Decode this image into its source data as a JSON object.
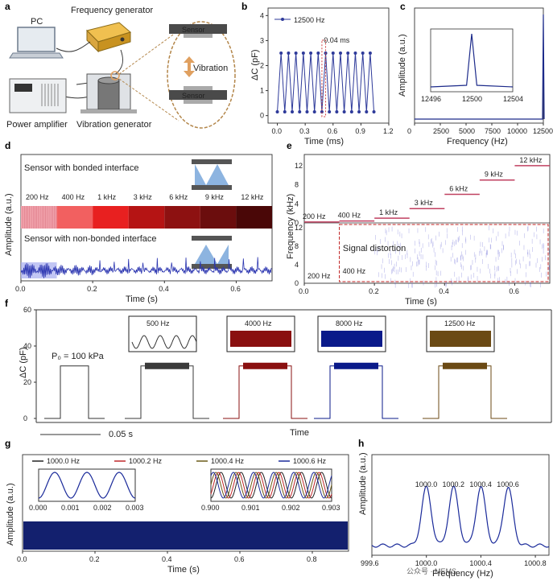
{
  "panel_letters": [
    "a",
    "b",
    "c",
    "d",
    "e",
    "f",
    "g",
    "h"
  ],
  "schematic": {
    "labels": [
      "PC",
      "Frequency generator",
      "Power amplifier",
      "Vibration generator",
      "Sensor",
      "Sensor",
      "Vibration"
    ],
    "colors": {
      "accent": "#e0a060",
      "dash": "#b3864a",
      "sensor": "#555555",
      "laptop": "#6b7a8c",
      "gen": "#d9a640"
    }
  },
  "chart_data": [
    {
      "panel": "b",
      "type": "line",
      "xlabel": "Time (ms)",
      "ylabel": "ΔC (pF)",
      "xlim": [
        -0.1,
        1.2
      ],
      "ylim": [
        -0.3,
        4.3
      ],
      "xticks": [
        0.0,
        0.3,
        0.6,
        0.9,
        1.2
      ],
      "yticks": [
        0,
        1,
        2,
        3,
        4
      ],
      "series": [
        {
          "name": "12500 Hz",
          "color": "#2e3a9a",
          "frequency_hz": 12500,
          "min": 0.15,
          "max": 2.5
        }
      ],
      "annotation": "0.04 ms"
    },
    {
      "panel": "c",
      "type": "line",
      "xlabel": "Frequency (Hz)",
      "ylabel": "Amplitude (a.u.)",
      "xlim": [
        0,
        12500
      ],
      "xticks": [
        0,
        2500,
        5000,
        7500,
        10000,
        12500
      ],
      "peak": 12500,
      "color": "#1c2a8a",
      "inset": {
        "xlim": [
          12496,
          12504
        ],
        "xticks": [
          12496,
          12500,
          12504
        ],
        "peak": 12500
      }
    },
    {
      "panel": "d",
      "type": "line",
      "xlabel": "Time (s)",
      "ylabel": "Amplitude (a.u.)",
      "xlim": [
        0,
        0.7
      ],
      "xticks": [
        0.0,
        0.2,
        0.4,
        0.6
      ],
      "title_top": "Sensor with bonded interface",
      "title_bottom": "Sensor with non-bonded interface",
      "segments": [
        "200 Hz",
        "400 Hz",
        "1 kHz",
        "3 kHz",
        "6 kHz",
        "9 kHz",
        "12 kHz"
      ],
      "segment_colors": [
        "#f3a7b0",
        "#f26060",
        "#e82020",
        "#b51414",
        "#8d1111",
        "#6b0d0d",
        "#4a0707"
      ],
      "bottom_color": "#2b35b0"
    },
    {
      "panel": "e",
      "type": "heatmap",
      "xlabel": "Time (s)",
      "ylabel": "Frequency (kHz)",
      "xlim": [
        0,
        0.7
      ],
      "xticks": [
        0.0,
        0.2,
        0.4,
        0.6
      ],
      "ylim": [
        0,
        13
      ],
      "yticks": [
        0,
        4,
        8,
        12
      ],
      "steps": [
        {
          "label": "200 Hz",
          "t0": 0.0,
          "t1": 0.1,
          "f": 0.2
        },
        {
          "label": "400 Hz",
          "t0": 0.1,
          "t1": 0.2,
          "f": 0.4
        },
        {
          "label": "1 kHz",
          "t0": 0.2,
          "t1": 0.3,
          "f": 1
        },
        {
          "label": "3 kHz",
          "t0": 0.3,
          "t1": 0.4,
          "f": 3
        },
        {
          "label": "6 kHz",
          "t0": 0.4,
          "t1": 0.5,
          "f": 6
        },
        {
          "label": "9 kHz",
          "t0": 0.5,
          "t1": 0.6,
          "f": 9
        },
        {
          "label": "12 kHz",
          "t0": 0.6,
          "t1": 0.7,
          "f": 12
        }
      ],
      "bottom_labels": [
        "200 Hz",
        "400 Hz"
      ],
      "distortion_label": "Signal distortion",
      "line_color": "#c04060",
      "noise_color": "#5a5ad0"
    },
    {
      "panel": "f",
      "type": "line",
      "xlabel": "Time",
      "ylabel": "ΔC (pF)",
      "ylim": [
        0,
        60
      ],
      "yticks": [
        0,
        20,
        40,
        60
      ],
      "pressure_label": "P₀ = 100 kPa",
      "scalebar": "0.05 s",
      "plateau": 29,
      "pulses": [
        {
          "label": "",
          "color": "#333333"
        },
        {
          "label": "500 Hz",
          "color": "#3a3a3a"
        },
        {
          "label": "4000 Hz",
          "color": "#8a1010"
        },
        {
          "label": "8000 Hz",
          "color": "#0a1a8a"
        },
        {
          "label": "12500 Hz",
          "color": "#6b4a14"
        }
      ]
    },
    {
      "panel": "g",
      "type": "line",
      "xlabel": "Time (s)",
      "ylabel": "Amplitude (a.u.)",
      "xlim": [
        0,
        0.9
      ],
      "xticks": [
        0.0,
        0.2,
        0.4,
        0.6,
        0.8
      ],
      "series": [
        {
          "name": "1000.0 Hz",
          "color": "#222222"
        },
        {
          "name": "1000.2 Hz",
          "color": "#c0282a"
        },
        {
          "name": "1000.4 Hz",
          "color": "#6b5a18"
        },
        {
          "name": "1000.6 Hz",
          "color": "#1a2a9a"
        }
      ],
      "inset_left": {
        "xticks": [
          "0.000",
          "0.001",
          "0.002",
          "0.003"
        ]
      },
      "inset_right": {
        "xticks": [
          "0.900",
          "0.901",
          "0.902",
          "0.903"
        ]
      },
      "fill_color": "#13206e"
    },
    {
      "panel": "h",
      "type": "line",
      "xlabel": "Frequency (Hz)",
      "ylabel": "Amplitude (a.u.)",
      "xlim": [
        999.6,
        1000.9
      ],
      "xticks": [
        "999.6",
        "1000.0",
        "1000.4",
        "1000.8"
      ],
      "peaks": [
        1000.0,
        1000.2,
        1000.4,
        1000.6
      ],
      "peak_labels": [
        "1000.0",
        "1000.2",
        "1000.4",
        "1000.6"
      ],
      "color": "#1a2a9a"
    }
  ],
  "watermark": "公众号 · MEMS"
}
